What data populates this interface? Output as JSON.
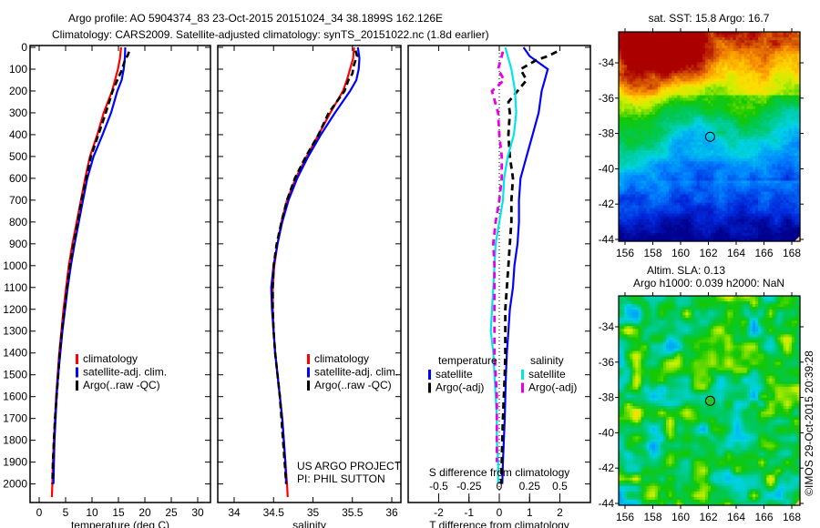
{
  "header": {
    "line1": "Argo profile: AO 5904374_83 23-Oct-2015 20151024_34 38.1899S 162.126E",
    "line2": "Climatology: CARS2009. Satellite-adjusted climatology: synTS_20151022.nc (1.8d earlier)"
  },
  "colors": {
    "climatology": "#ff0000",
    "satellite": "#0000ff",
    "argo": "#000000",
    "sal_satellite": "#00e5e5",
    "sal_argo": "#e600e6"
  },
  "chart_data": [
    {
      "type": "line",
      "id": "temperature-profile",
      "xlabel": "temperature (deg C)",
      "ylabel": "",
      "xlim": [
        -1.5,
        32
      ],
      "ylim": [
        2060,
        0
      ],
      "xticks": [
        0,
        5,
        10,
        15,
        20,
        25,
        30
      ],
      "yticks": [
        0,
        100,
        200,
        300,
        400,
        500,
        600,
        700,
        800,
        900,
        1000,
        1100,
        1200,
        1300,
        1400,
        1500,
        1600,
        1700,
        1800,
        1900,
        2000
      ],
      "legend": {
        "placement": "lower-center",
        "entries": [
          "climatology",
          "satellite-adj. clim.",
          "Argo(..raw -QC)"
        ]
      },
      "series": [
        {
          "name": "climatology",
          "color_key": "climatology",
          "style": "solid",
          "depth": [
            0,
            50,
            100,
            200,
            300,
            400,
            500,
            600,
            700,
            800,
            900,
            1000,
            1100,
            1200,
            1300,
            1400,
            1500,
            1600,
            1700,
            1800,
            1900,
            2000,
            2060
          ],
          "values": [
            15.5,
            15.3,
            14.9,
            13.8,
            12.2,
            11.0,
            9.6,
            8.7,
            7.9,
            7.1,
            6.3,
            5.6,
            5.1,
            4.6,
            4.2,
            3.8,
            3.5,
            3.2,
            3.0,
            2.8,
            2.6,
            2.5,
            2.4
          ]
        },
        {
          "name": "satellite-adj. clim.",
          "color_key": "satellite",
          "style": "solid",
          "depth": [
            0,
            50,
            100,
            150,
            200,
            300,
            400,
            500,
            600,
            700,
            800,
            900,
            1000,
            1100,
            1200,
            1300,
            1400,
            1500,
            1600,
            1700,
            1800,
            1900,
            2000
          ],
          "values": [
            16.3,
            16.2,
            16.0,
            15.6,
            14.8,
            13.6,
            12.0,
            10.3,
            9.1,
            8.3,
            7.5,
            6.7,
            6.0,
            5.4,
            4.9,
            4.4,
            4.0,
            3.6,
            3.3,
            3.1,
            2.9,
            2.8,
            2.7
          ]
        },
        {
          "name": "Argo(..raw -QC)",
          "color_key": "argo",
          "style": "dashed",
          "depth": [
            20,
            35,
            60,
            100,
            150,
            200,
            300,
            400,
            500,
            600,
            700,
            800,
            900,
            1000,
            1100,
            1200,
            1300,
            1400,
            1500,
            1600,
            1700,
            1800,
            1900,
            2000
          ],
          "values": [
            17.0,
            16.8,
            16.2,
            15.7,
            14.8,
            13.9,
            12.6,
            11.2,
            9.8,
            8.9,
            8.0,
            7.3,
            6.5,
            5.8,
            5.3,
            4.8,
            4.3,
            3.9,
            3.6,
            3.3,
            3.0,
            2.8,
            2.6,
            2.5
          ]
        }
      ]
    },
    {
      "type": "line",
      "id": "salinity-profile",
      "xlabel": "salinity",
      "xlim": [
        33.8,
        36.1
      ],
      "ylim": [
        2060,
        0
      ],
      "xticks": [
        34,
        34.5,
        35,
        35.5,
        36
      ],
      "legend": {
        "placement": "lower-right",
        "entries": [
          "climatology",
          "satellite-adj. clim.",
          "Argo(..raw -QC)"
        ]
      },
      "annotations": [
        "US ARGO PROJECT",
        "PI: PHIL SUTTON"
      ],
      "series": [
        {
          "name": "climatology",
          "color_key": "climatology",
          "style": "solid",
          "depth": [
            0,
            50,
            100,
            150,
            200,
            300,
            400,
            500,
            600,
            700,
            800,
            900,
            1000,
            1100,
            1200,
            1300,
            1400,
            1500,
            1600,
            1700,
            1800,
            1900,
            2000,
            2060
          ],
          "values": [
            35.52,
            35.51,
            35.47,
            35.43,
            35.38,
            35.22,
            35.07,
            34.92,
            34.78,
            34.67,
            34.6,
            34.55,
            34.51,
            34.49,
            34.49,
            34.5,
            34.52,
            34.55,
            34.58,
            34.61,
            34.63,
            34.65,
            34.67,
            34.68
          ]
        },
        {
          "name": "satellite-adj. clim.",
          "color_key": "satellite",
          "style": "solid",
          "depth": [
            0,
            50,
            100,
            150,
            200,
            300,
            400,
            500,
            600,
            700,
            800,
            900,
            1000,
            1100,
            1200,
            1300,
            1400,
            1500,
            1600,
            1700,
            1800,
            1900,
            2000
          ],
          "values": [
            35.57,
            35.59,
            35.58,
            35.55,
            35.47,
            35.28,
            35.1,
            34.94,
            34.8,
            34.69,
            34.61,
            34.55,
            34.5,
            34.47,
            34.48,
            34.5,
            34.52,
            34.55,
            34.58,
            34.61,
            34.63,
            34.65,
            34.66
          ]
        },
        {
          "name": "Argo(..raw -QC)",
          "color_key": "argo",
          "style": "dashed",
          "depth": [
            15,
            40,
            80,
            120,
            150,
            200,
            300,
            400,
            500,
            600,
            700,
            800,
            900,
            1000,
            1100,
            1200,
            1300,
            1400,
            1500,
            1600,
            1700,
            1800,
            1900,
            2000
          ],
          "values": [
            35.54,
            35.56,
            35.52,
            35.5,
            35.45,
            35.4,
            35.2,
            35.07,
            34.91,
            34.77,
            34.67,
            34.6,
            34.54,
            34.5,
            34.49,
            34.49,
            34.5,
            34.52,
            34.55,
            34.58,
            34.6,
            34.62,
            34.64,
            34.66
          ]
        }
      ]
    },
    {
      "type": "line",
      "id": "difference-profile",
      "xlabel": "T difference from climatology",
      "xlabel_top": "S difference from climatology",
      "xlim": [
        -3,
        3
      ],
      "ylim": [
        2060,
        0
      ],
      "xticks": [
        -2,
        -1,
        0,
        1,
        2
      ],
      "xticks_secondary": [
        "-0.5",
        "-0.25",
        "0",
        "0.25",
        "0.5"
      ],
      "legend": {
        "placement": "lower-center",
        "temperature_title": "temperature",
        "salinity_title": "salinity",
        "entries": [
          "satellite",
          "Argo(-adj)",
          "satellite",
          "Argo(-adj)"
        ]
      },
      "series": [
        {
          "name": "temperature satellite",
          "color_key": "satellite",
          "style": "solid",
          "depth": [
            0,
            40,
            100,
            150,
            200,
            300,
            400,
            500,
            600,
            700,
            800,
            900,
            1000,
            1100,
            1200,
            1300,
            1400,
            1500,
            1600,
            1700,
            1800,
            1900,
            2000
          ],
          "values": [
            0.8,
            1.0,
            1.6,
            1.5,
            1.4,
            1.3,
            1.1,
            0.9,
            0.7,
            0.65,
            0.65,
            0.6,
            0.5,
            0.45,
            0.35,
            0.3,
            0.25,
            0.22,
            0.2,
            0.18,
            0.15,
            0.12,
            0.1
          ]
        },
        {
          "name": "temperature Argo(-adj)",
          "color_key": "argo",
          "style": "dashed",
          "depth": [
            20,
            40,
            60,
            100,
            150,
            200,
            250,
            300,
            400,
            500,
            600,
            700,
            800,
            900,
            1000,
            1100,
            1200,
            1300,
            1400,
            1500,
            1600,
            1700,
            1800,
            1900,
            2000
          ],
          "values": [
            1.9,
            1.6,
            1.2,
            0.7,
            0.9,
            0.6,
            0.3,
            0.35,
            0.3,
            0.35,
            0.45,
            0.4,
            0.4,
            0.35,
            0.3,
            0.25,
            0.2,
            0.2,
            0.2,
            0.18,
            0.15,
            0.12,
            0.1,
            0.08,
            0.06
          ]
        },
        {
          "name": "salinity satellite",
          "color_key": "sal_satellite",
          "style": "solid",
          "depth": [
            0,
            100,
            200,
            300,
            400,
            500,
            600,
            700,
            800,
            900,
            1000,
            1100,
            1200,
            1300,
            1400,
            1500,
            1600,
            1700,
            1800,
            1900,
            2000
          ],
          "values": [
            0.05,
            0.1,
            0.13,
            0.14,
            0.12,
            0.07,
            0.04,
            0.03,
            0.0,
            -0.03,
            -0.04,
            -0.05,
            -0.06,
            -0.07,
            -0.05,
            -0.04,
            -0.03,
            -0.02,
            -0.02,
            -0.01,
            -0.01
          ]
        },
        {
          "name": "salinity Argo(-adj)",
          "color_key": "sal_argo",
          "style": "dashed",
          "depth": [
            20,
            100,
            150,
            200,
            300,
            400,
            500,
            600,
            700,
            800,
            900,
            1000,
            1100,
            1200,
            1300,
            1400,
            1500,
            1600,
            1700,
            1800,
            1900
          ],
          "values": [
            0.03,
            -0.01,
            0.04,
            -0.06,
            -0.01,
            0.0,
            0.02,
            0.02,
            0.0,
            -0.03,
            -0.05,
            -0.04,
            -0.04,
            -0.04,
            -0.04,
            -0.04,
            -0.03,
            -0.02,
            -0.02,
            -0.02,
            -0.02
          ]
        }
      ]
    },
    {
      "type": "heatmap",
      "id": "sst-map",
      "title": "sat. SST: 15.8 Argo: 16.7",
      "xticks": [
        156,
        158,
        160,
        162,
        164,
        166,
        168
      ],
      "yticks": [
        -34,
        -36,
        -38,
        -40,
        -42,
        -44
      ],
      "xlim": [
        155.6,
        168.6
      ],
      "ylim": [
        -44.2,
        -32.4
      ],
      "marker": {
        "lon": 162.126,
        "lat": -38.19
      }
    },
    {
      "type": "heatmap",
      "id": "sla-map",
      "title": "Altim. SLA: 0.13",
      "subtitle": "Argo h1000: 0.039 h2000: NaN",
      "xticks": [
        156,
        158,
        160,
        162,
        164,
        166,
        168
      ],
      "yticks": [
        -34,
        -36,
        -38,
        -40,
        -42,
        -44
      ],
      "xlim": [
        155.6,
        168.6
      ],
      "ylim": [
        -44.2,
        -32.4
      ],
      "marker": {
        "lon": 162.126,
        "lat": -38.19
      },
      "side_annotation": "©IMOS 29-Oct-2015 20:39:28"
    }
  ]
}
